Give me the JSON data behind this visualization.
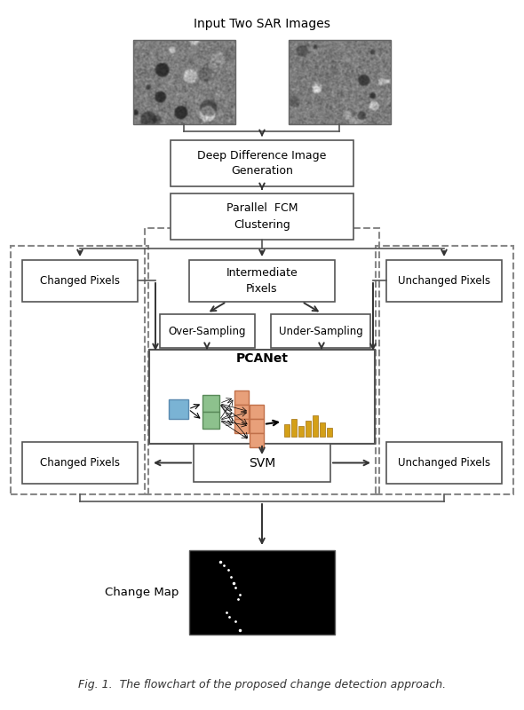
{
  "title": "Input Two SAR Images",
  "caption": "Fig. 1.  The flowchart of the proposed change detection approach.",
  "box_edge_color": "#555555",
  "dashed_edge_color": "#888888",
  "arrow_color": "#333333",
  "blue_box": "#7ab3d4",
  "green_box": "#8dc18d",
  "orange_box": "#e8a07a",
  "gold_bar_color": "#d4a017",
  "text_color": "black",
  "boxes": {
    "deep_diff": "Deep Difference Image\nGeneration",
    "parallel_fcm": "Parallel  FCM\nClustering",
    "changed_top": "Changed Pixels",
    "intermediate": "Intermediate\nPixels",
    "unchanged_top": "Unchanged Pixels",
    "over_sampling": "Over-Sampling",
    "under_sampling": "Under-Sampling",
    "pcanet": "PCANet",
    "svm": "SVM",
    "changed_bottom": "Changed Pixels",
    "unchanged_bottom": "Unchanged Pixels",
    "change_map_label": "Change Map"
  }
}
